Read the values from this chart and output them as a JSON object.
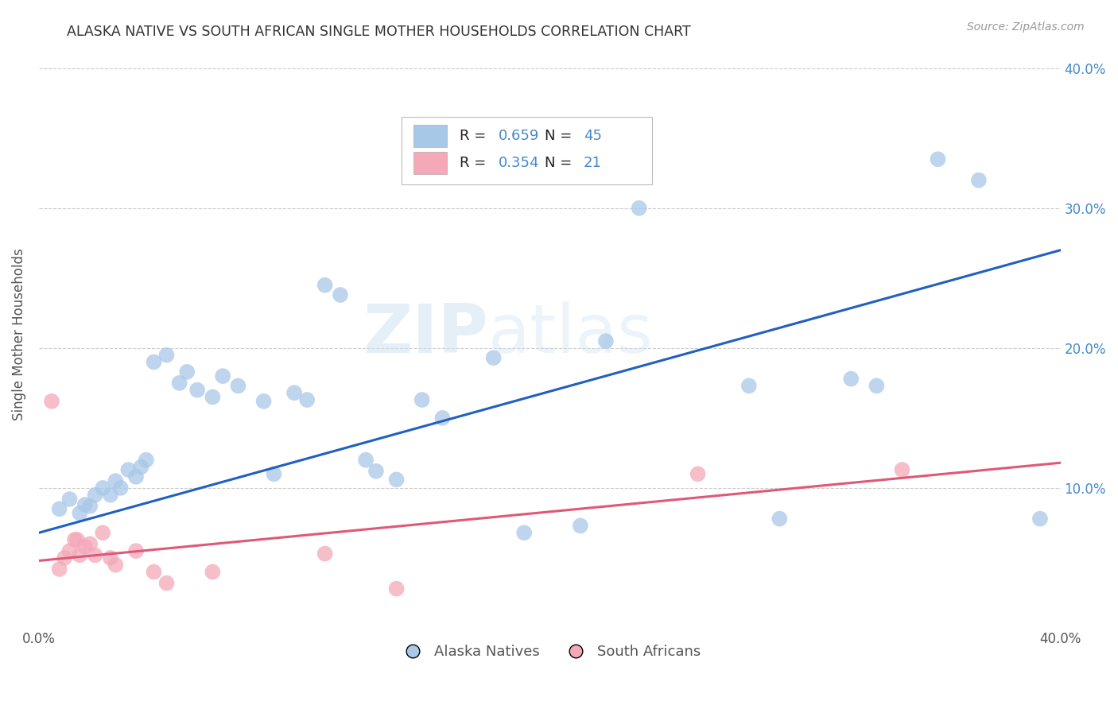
{
  "title": "ALASKA NATIVE VS SOUTH AFRICAN SINGLE MOTHER HOUSEHOLDS CORRELATION CHART",
  "source": "Source: ZipAtlas.com",
  "ylabel": "Single Mother Households",
  "xlim": [
    0.0,
    0.4
  ],
  "ylim": [
    0.0,
    0.42
  ],
  "watermark_zip": "ZIP",
  "watermark_atlas": "atlas",
  "legend_text_blue": "R = 0.659   N = 45",
  "legend_text_pink": "R = 0.354   N = 21",
  "legend_label_blue": "Alaska Natives",
  "legend_label_pink": "South Africans",
  "blue_color": "#a8c8e8",
  "pink_color": "#f4a8b8",
  "blue_line_color": "#2060c0",
  "pink_line_color": "#e05878",
  "grid_color": "#cccccc",
  "title_color": "#333333",
  "ytick_color": "#4488cc",
  "blue_scatter": [
    [
      0.008,
      0.085
    ],
    [
      0.012,
      0.092
    ],
    [
      0.016,
      0.082
    ],
    [
      0.018,
      0.088
    ],
    [
      0.02,
      0.087
    ],
    [
      0.022,
      0.095
    ],
    [
      0.025,
      0.1
    ],
    [
      0.028,
      0.095
    ],
    [
      0.03,
      0.105
    ],
    [
      0.032,
      0.1
    ],
    [
      0.035,
      0.113
    ],
    [
      0.038,
      0.108
    ],
    [
      0.04,
      0.115
    ],
    [
      0.042,
      0.12
    ],
    [
      0.045,
      0.19
    ],
    [
      0.05,
      0.195
    ],
    [
      0.055,
      0.175
    ],
    [
      0.058,
      0.183
    ],
    [
      0.062,
      0.17
    ],
    [
      0.068,
      0.165
    ],
    [
      0.072,
      0.18
    ],
    [
      0.078,
      0.173
    ],
    [
      0.088,
      0.162
    ],
    [
      0.092,
      0.11
    ],
    [
      0.1,
      0.168
    ],
    [
      0.105,
      0.163
    ],
    [
      0.112,
      0.245
    ],
    [
      0.118,
      0.238
    ],
    [
      0.128,
      0.12
    ],
    [
      0.132,
      0.112
    ],
    [
      0.14,
      0.106
    ],
    [
      0.15,
      0.163
    ],
    [
      0.158,
      0.15
    ],
    [
      0.178,
      0.193
    ],
    [
      0.19,
      0.068
    ],
    [
      0.212,
      0.073
    ],
    [
      0.222,
      0.205
    ],
    [
      0.235,
      0.3
    ],
    [
      0.278,
      0.173
    ],
    [
      0.29,
      0.078
    ],
    [
      0.318,
      0.178
    ],
    [
      0.328,
      0.173
    ],
    [
      0.352,
      0.335
    ],
    [
      0.368,
      0.32
    ],
    [
      0.392,
      0.078
    ]
  ],
  "pink_scatter": [
    [
      0.005,
      0.162
    ],
    [
      0.008,
      0.042
    ],
    [
      0.01,
      0.05
    ],
    [
      0.012,
      0.055
    ],
    [
      0.014,
      0.063
    ],
    [
      0.015,
      0.063
    ],
    [
      0.016,
      0.052
    ],
    [
      0.018,
      0.058
    ],
    [
      0.02,
      0.06
    ],
    [
      0.022,
      0.052
    ],
    [
      0.025,
      0.068
    ],
    [
      0.028,
      0.05
    ],
    [
      0.03,
      0.045
    ],
    [
      0.038,
      0.055
    ],
    [
      0.045,
      0.04
    ],
    [
      0.05,
      0.032
    ],
    [
      0.068,
      0.04
    ],
    [
      0.112,
      0.053
    ],
    [
      0.14,
      0.028
    ],
    [
      0.258,
      0.11
    ],
    [
      0.338,
      0.113
    ]
  ],
  "blue_line_x": [
    0.0,
    0.4
  ],
  "blue_line_y": [
    0.068,
    0.27
  ],
  "pink_line_x": [
    0.0,
    0.4
  ],
  "pink_line_y": [
    0.048,
    0.118
  ]
}
